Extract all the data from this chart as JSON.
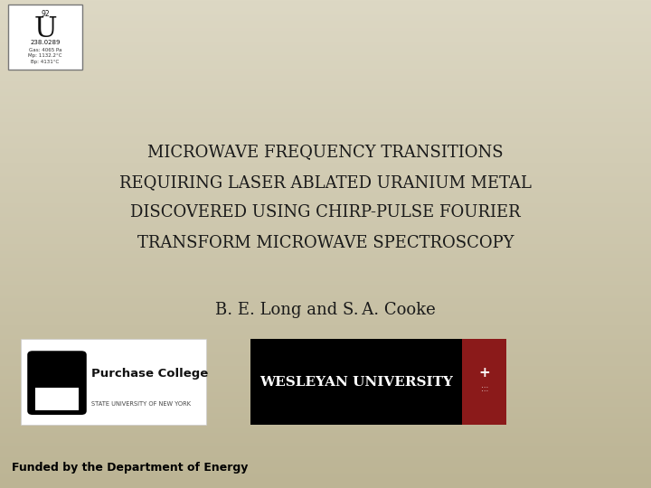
{
  "bg_color_top": "#ddd8c4",
  "bg_color_bottom": "#c4bc9a",
  "title_lines": [
    "MICROWAVE FREQUENCY TRANSITIONS",
    "REQUIRING LASER ABLATED URANIUM METAL",
    "DISCOVERED USING CHIRP-PULSE FOURIER",
    "TRANSFORM MICROWAVE SPECTROSCOPY"
  ],
  "title_fontsize": 13,
  "title_color": "#1a1a1a",
  "title_font": "serif",
  "author_text": "B. E. Long and S. A. Cooke",
  "author_fontsize": 13,
  "author_color": "#1a1a1a",
  "funding_text": "Funded by the Department of Energy",
  "funding_fontsize": 9,
  "funding_color": "#000000",
  "element_symbol": "U",
  "element_number": "92",
  "element_mass": "238.0289",
  "element_line1": "Gas: 4065 Pa",
  "element_line2": "Mp: 1132.2°C",
  "element_line3": "Bp: 4131°C"
}
